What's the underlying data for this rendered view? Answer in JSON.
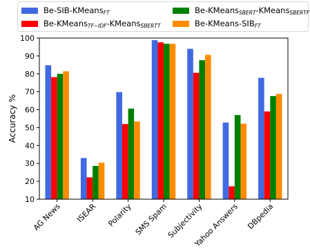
{
  "chart_data": {
    "type": "bar",
    "categories": [
      "AG News",
      "ISEAR",
      "Polarity",
      "SMS Spam",
      "Subjectivity",
      "Yahoo Answers",
      "DBpedia"
    ],
    "series": [
      {
        "name": "Be-SIB-KMeans",
        "name_sub": "FT",
        "color": "#4169e1",
        "values": [
          84.8,
          33.0,
          69.8,
          98.8,
          94.0,
          52.8,
          77.8
        ]
      },
      {
        "name": "Be-KMeans",
        "name_sub": "TF−IDF",
        "name_mid": "-KMeans",
        "name_sub2": "SBERTT",
        "color": "#ff0000",
        "values": [
          78.2,
          22.2,
          52.0,
          97.6,
          80.6,
          17.2,
          59.0
        ]
      },
      {
        "name": "Be-KMeans",
        "name_sub": "SBERT",
        "name_mid": "-KMeans",
        "name_sub2": "SBERTFT",
        "color": "#008000",
        "values": [
          80.0,
          28.6,
          60.6,
          96.8,
          87.6,
          57.0,
          67.6
        ]
      },
      {
        "name": "Be-KMeans-SIB",
        "name_sub": "FT",
        "color": "#ff8c00",
        "values": [
          81.4,
          30.4,
          53.4,
          96.8,
          90.6,
          52.2,
          68.8
        ]
      }
    ],
    "ylabel": "Accuracy %",
    "xlabel": "",
    "ylim": [
      10,
      100
    ],
    "yticks": [
      10,
      20,
      30,
      40,
      50,
      60,
      70,
      80,
      90,
      100
    ],
    "grid": false,
    "legend_position": "top"
  }
}
